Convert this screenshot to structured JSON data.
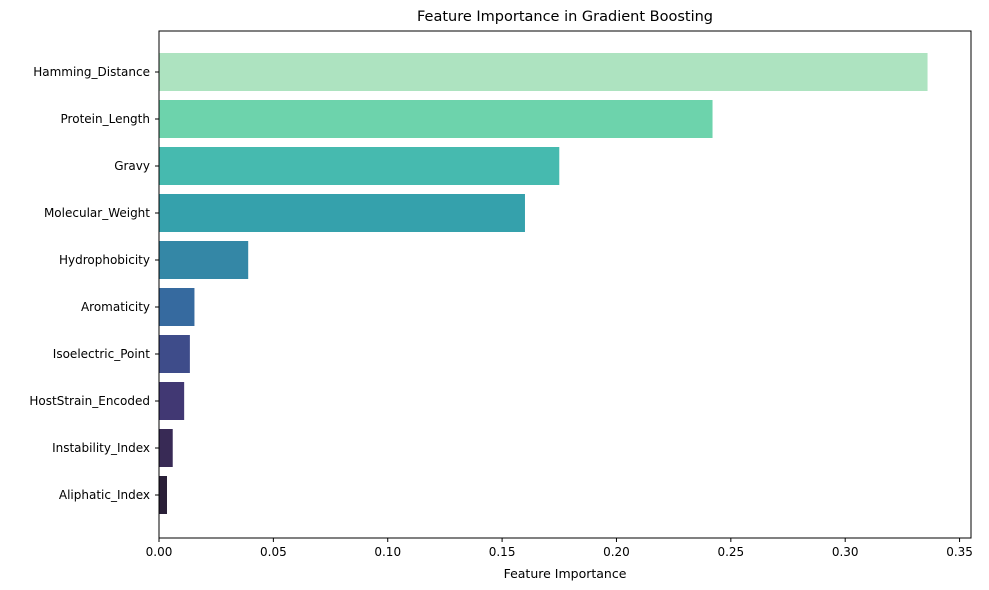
{
  "chart_data": {
    "type": "bar",
    "orientation": "horizontal",
    "title": "Feature Importance in Gradient Boosting",
    "xlabel": "Feature Importance",
    "ylabel": "",
    "xlim": [
      0,
      0.355
    ],
    "x_ticks": [
      "0.00",
      "0.05",
      "0.10",
      "0.15",
      "0.20",
      "0.25",
      "0.30",
      "0.35"
    ],
    "grid": false,
    "categories": [
      "Hamming_Distance",
      "Protein_Length",
      "Gravy",
      "Molecular_Weight",
      "Hydrophobicity",
      "Aromaticity",
      "Isoelectric_Point",
      "HostStrain_Encoded",
      "Instability_Index",
      "Aliphatic_Index"
    ],
    "values": [
      0.336,
      0.242,
      0.175,
      0.16,
      0.039,
      0.0155,
      0.0135,
      0.011,
      0.006,
      0.0035
    ],
    "colors": [
      "#ADE3C0",
      "#6DD3AC",
      "#46BAAF",
      "#35A1AC",
      "#3487A6",
      "#366A9F",
      "#3E4C8A",
      "#413873",
      "#382A55",
      "#2A1F38"
    ]
  }
}
